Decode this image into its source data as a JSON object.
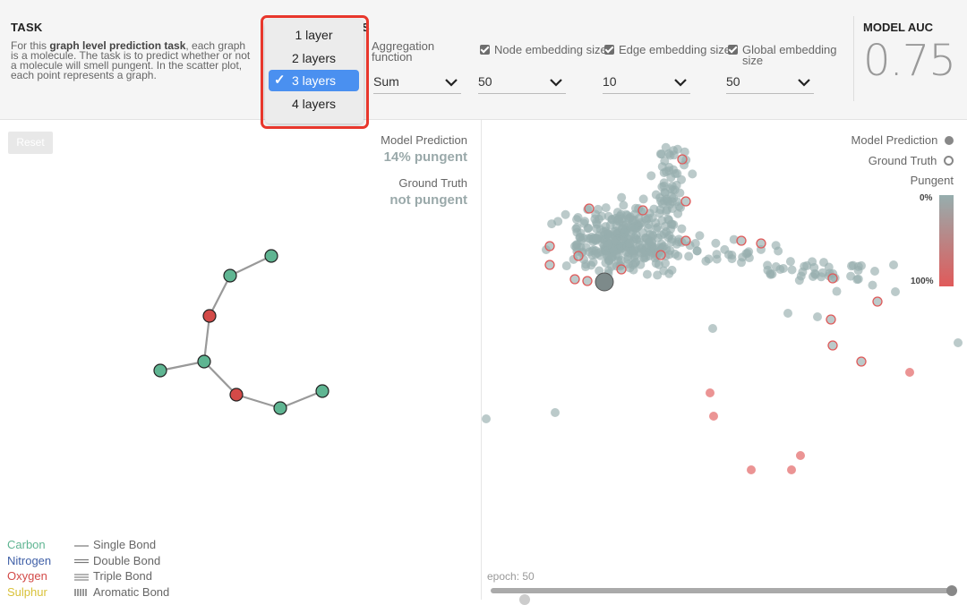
{
  "task": {
    "heading": "TASK",
    "desc_prefix": "For this ",
    "desc_bold": "graph level prediction task",
    "desc_suffix": ", each graph is a molecule. The task is to predict whether or not a molecule will smell pungent. In the scatter plot, each point represents a graph."
  },
  "hyperparams": {
    "heading_fragment": "S",
    "aggregation": {
      "label": "Aggregation function",
      "value": "Sum"
    },
    "node_embedding": {
      "label": "Node embedding size",
      "value": "50",
      "checked": true
    },
    "edge_embedding": {
      "label": "Edge embedding size",
      "value": "10",
      "checked": true
    },
    "global_embedding": {
      "label": "Global embedding size",
      "value": "50",
      "checked": true
    }
  },
  "layers_dropdown": {
    "options": [
      "1 layer",
      "2 layers",
      "3 layers",
      "4 layers"
    ],
    "selected": "3 layers"
  },
  "model_auc": {
    "heading": "MODEL AUC",
    "value": "0.75"
  },
  "left_panel": {
    "reset_label": "Reset",
    "model_prediction_label": "Model Prediction",
    "model_prediction_value": "14% pungent",
    "ground_truth_label": "Ground Truth",
    "ground_truth_value": "not pungent"
  },
  "atom_legend": [
    {
      "name": "Carbon",
      "color": "#5fb592"
    },
    {
      "name": "Nitrogen",
      "color": "#3f5fa7"
    },
    {
      "name": "Oxygen",
      "color": "#d34a48"
    },
    {
      "name": "Sulphur",
      "color": "#d9c23a"
    }
  ],
  "bond_legend": [
    "Single Bond",
    "Double Bond",
    "Triple Bond",
    "Aromatic Bond"
  ],
  "scatter_legend": {
    "model_prediction": "Model Prediction",
    "ground_truth": "Ground Truth",
    "pungent": "Pungent",
    "scale_top": "0%",
    "scale_bottom": "100%"
  },
  "epoch_label": "epoch: 50",
  "colors": {
    "accent_selected": "#4a90f0",
    "highlight_box": "#e8372c",
    "not_pungent": "#96aeae",
    "pungent": "#e05a5a"
  }
}
